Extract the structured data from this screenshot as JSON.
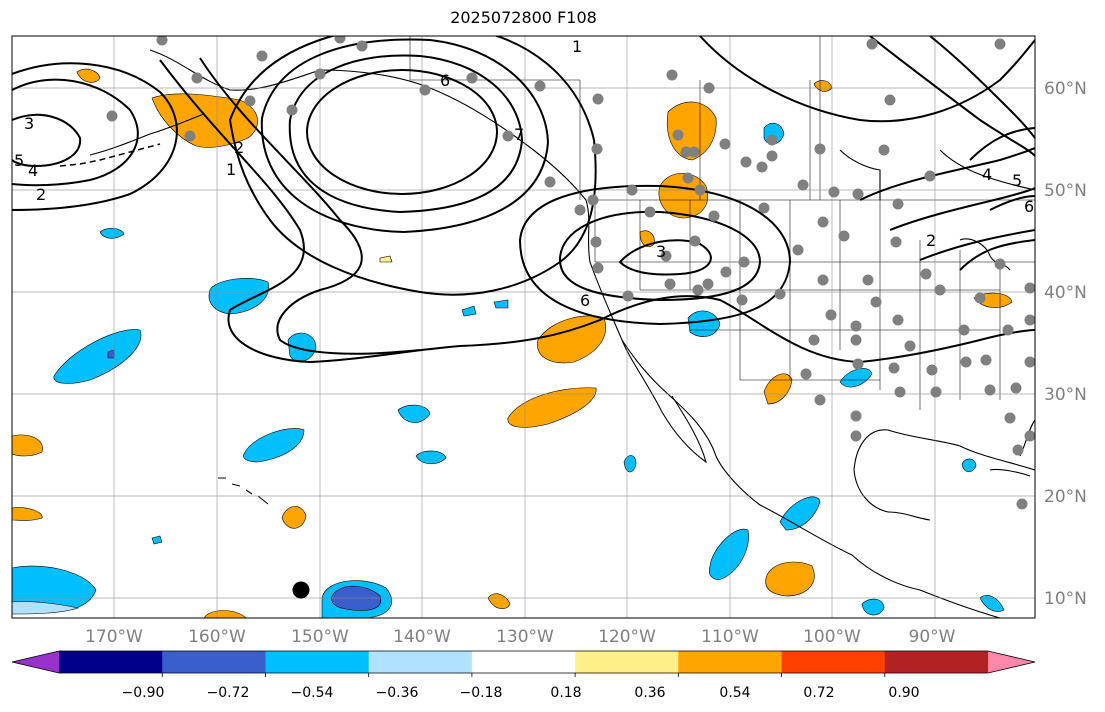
{
  "title": "2025072800 F108",
  "map": {
    "projection": "PlateCarree",
    "lon_range": [
      -180,
      -80
    ],
    "lat_range": [
      8,
      65
    ],
    "lon_ticks": [
      "170°W",
      "160°W",
      "150°W",
      "140°W",
      "130°W",
      "120°W",
      "110°W",
      "100°W",
      "90°W"
    ],
    "lat_ticks": [
      "10°N",
      "20°N",
      "30°N",
      "40°N",
      "50°N",
      "60°N"
    ],
    "grid": true,
    "coastlines": true,
    "us_state_borders": true,
    "station_marker_color": "#808080",
    "contour_color": "#000000",
    "contour_labels": [
      "3",
      "5",
      "4",
      "2",
      "1",
      "2",
      "6",
      "7",
      "1",
      "3",
      "6",
      "2",
      "4",
      "5",
      "6"
    ]
  },
  "colorbar": {
    "orientation": "horizontal",
    "extend": "both",
    "tick_labels": [
      "−0.90",
      "−0.72",
      "−0.54",
      "−0.36",
      "−0.18",
      "0.18",
      "0.36",
      "0.54",
      "0.72",
      "0.90"
    ],
    "colors": [
      "#9932cc",
      "#00008b",
      "#3a5fcd",
      "#00bfff",
      "#b0e2ff",
      "#ffffff",
      "#fff08c",
      "#ffa500",
      "#ff4000",
      "#b22222",
      "#ff88aa"
    ]
  }
}
